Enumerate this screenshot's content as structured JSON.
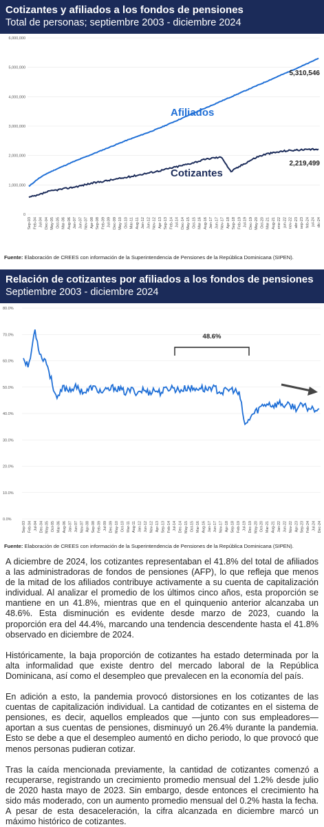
{
  "chart1_header": {
    "title": "Cotizantes y afiliados a los fondos de pensiones",
    "subtitle": "Total de personas; septiembre 2003 - diciembre 2024"
  },
  "chart2_header": {
    "title": "Relación de cotizantes por afiliados a los fondos de pensiones",
    "subtitle": "Septiembre 2003 - diciembre 2024"
  },
  "source": {
    "label": "Fuente:",
    "text": "Elaboración de CREES con información de la Superintendencia de Pensiones de la República Dominicana (SIPEN)."
  },
  "colors": {
    "header_bg": "#1b2b59",
    "afiliados": "#1f6fd6",
    "cotizantes": "#1b2b59",
    "ratio": "#1f6fd6",
    "arrow": "#444444"
  },
  "chart_data": [
    {
      "type": "line",
      "ylim": [
        0,
        6000000
      ],
      "yticks": [
        "0",
        "1,000,000",
        "2,000,000",
        "3,000,000",
        "4,000,000",
        "5,000,000",
        "6,000,000"
      ],
      "xticks": [
        "Sep-03",
        "Feb-04",
        "Jul-04",
        "Dec-04",
        "May-05",
        "Oct-05",
        "Mar-06",
        "Aug-06",
        "Jan-07",
        "Jun-07",
        "Nov-07",
        "Apr-08",
        "Sep-08",
        "Feb-09",
        "Jul-09",
        "Dec-09",
        "May-10",
        "Oct-10",
        "Mar-11",
        "Aug-11",
        "Jan-12",
        "Jun-12",
        "Nov-12",
        "Apr-13",
        "Sep-13",
        "Feb-14",
        "Jul-14",
        "Dec-14",
        "May-15",
        "Oct-15",
        "Mar-16",
        "Aug-16",
        "Jan-17",
        "Jun-17",
        "Nov-17",
        "Apr-18",
        "Sep-18",
        "Feb-19",
        "Jul-19",
        "Dec-19",
        "May-20",
        "Oct-20",
        "Mar-21",
        "Aug-21",
        "ene-22",
        "jun-22",
        "nov-22",
        "abr-23",
        "sep-23",
        "feb-24",
        "jul-24",
        "dic-24"
      ],
      "series": [
        {
          "name": "Afiliados",
          "end_label": "5,310,546",
          "values": [
            950000,
            1200000,
            1380000,
            1520000,
            1650000,
            1780000,
            1900000,
            2020000,
            2140000,
            2260000,
            2380000,
            2500000,
            2610000,
            2720000,
            2830000,
            2950000,
            3080000,
            3210000,
            3340000,
            3470000,
            3600000,
            3730000,
            3860000,
            3990000,
            4120000,
            4250000,
            4380000,
            4510000,
            4640000,
            4770000,
            4900000,
            5030000,
            5160000,
            5310546
          ]
        },
        {
          "name": "Cotizantes",
          "end_label": "2,219,499",
          "values": [
            580000,
            640000,
            760000,
            820000,
            870000,
            920000,
            980000,
            1050000,
            1100000,
            1150000,
            1200000,
            1250000,
            1310000,
            1370000,
            1430000,
            1490000,
            1560000,
            1630000,
            1700000,
            1780000,
            1860000,
            1920000,
            1940000,
            1450000,
            1630000,
            1800000,
            1950000,
            2050000,
            2100000,
            2150000,
            2180000,
            2190000,
            2200000,
            2219499
          ]
        }
      ]
    },
    {
      "type": "line",
      "ylim": [
        0,
        80
      ],
      "yticks": [
        "0.0%",
        "10.0%",
        "20.0%",
        "30.0%",
        "40.0%",
        "50.0%",
        "60.0%",
        "70.0%",
        "80.0%"
      ],
      "xticks": [
        "Sep-03",
        "Feb-04",
        "Jul-04",
        "Dec-04",
        "May-05",
        "Oct-05",
        "Mar-06",
        "Aug-06",
        "Jan-07",
        "Jun-07",
        "Nov-07",
        "Apr-08",
        "Sep-08",
        "Feb-09",
        "Jul-09",
        "Dec-09",
        "May-10",
        "Oct-10",
        "Mar-11",
        "Aug-11",
        "Jan-12",
        "Jun-12",
        "Nov-12",
        "Apr-13",
        "Sep-13",
        "Feb-14",
        "Jul-14",
        "Dec-14",
        "May-15",
        "Oct-15",
        "Mar-16",
        "Aug-16",
        "Jan-17",
        "Jun-17",
        "Nov-17",
        "Apr-18",
        "Sep-18",
        "Feb-19",
        "Jul-19",
        "Dec-19",
        "May-20",
        "Oct-20",
        "Mar-21",
        "Aug-21",
        "Jan-22",
        "Jun-22",
        "Nov-22",
        "Apr-23",
        "Sep-23",
        "Feb-24",
        "Jul-24",
        "Dec-24"
      ],
      "series": [
        {
          "name": "Relación",
          "values": [
            61,
            58,
            72,
            62,
            60,
            52,
            45,
            50,
            49,
            50,
            49,
            48,
            50,
            49,
            48,
            49,
            50,
            49,
            48,
            49,
            48,
            49,
            48,
            49,
            48,
            49,
            50,
            49,
            49,
            50,
            49,
            50,
            49,
            50,
            49,
            48,
            49,
            49,
            47,
            35,
            39,
            41,
            43,
            44,
            43,
            44,
            43,
            43,
            42,
            43,
            42,
            42,
            41.8
          ]
        }
      ],
      "annotation": "48.6%"
    }
  ],
  "text": {
    "p1": "A diciembre de 2024, los cotizantes representaban el 41.8% del total de afiliados a las administradoras de fondos de pensiones (AFP), lo que refleja que menos de la mitad de los afiliados contribuye activamente a su cuenta de capitalización individual. Al analizar el promedio de los últimos cinco años, esta proporción se mantiene en un 41.8%, mientras que en el quinquenio anterior alcanzaba un 48.6%. Esta disminución es evidente desde marzo de 2023, cuando la proporción era del 44.4%, marcando una tendencia descendente hasta el 41.8% observado en diciembre de 2024.",
    "p2": "Históricamente, la baja proporción de cotizantes ha estado determinada por la alta informalidad que existe dentro del mercado laboral de la República Dominicana, así como el desempleo que prevalecen en la economía del país.",
    "p3": "En adición a esto, la pandemia provocó distorsiones en los cotizantes de las cuentas de capitalización individual. La cantidad de cotizantes en el sistema de pensiones, es decir, aquellos empleados que —junto con sus empleadores— aportan a sus cuentas de pensiones, disminuyó un 26.4% durante la pandemia. Esto se debe a que el desempleo aumentó en dicho periodo, lo que provocó que menos personas pudieran cotizar.",
    "p4": "Tras la caída mencionada previamente, la cantidad de cotizantes comenzó a recuperarse, registrando un crecimiento promedio mensual del 1.2% desde julio de 2020 hasta mayo de 2023. Sin embargo, desde entonces el crecimiento ha sido más moderado, con un aumento promedio mensual del 0.2% hasta la fecha. A pesar de esta desaceleración, la cifra alcanzada en diciembre marcó un máximo histórico de cotizantes."
  }
}
